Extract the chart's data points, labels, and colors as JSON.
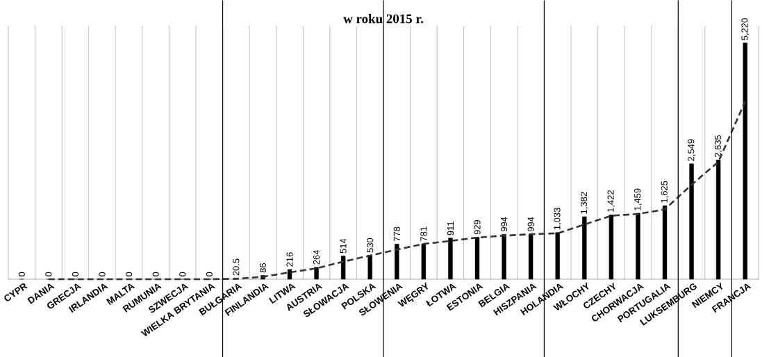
{
  "chart_data": {
    "type": "bar",
    "title": "w roku 2015 r.",
    "categories": [
      "CYPR",
      "DANIA",
      "GRECJA",
      "IRLANDIA",
      "MALTA",
      "RUMUNIA",
      "SZWECJA",
      "WIELKA BRYTANIA",
      "BUŁGARIA",
      "FINLANDIA",
      "LITWA",
      "AUSTRIA",
      "SŁOWACJA",
      "POLSKA",
      "SŁOWENIA",
      "WĘGRY",
      "ŁOTWA",
      "ESTONIA",
      "BELGIA",
      "HISZPANIA",
      "HOLANDIA",
      "WŁOCHY",
      "CZECHY",
      "CHORWACJA",
      "PORTUGALIA",
      "LUKSEMBURG",
      "NIEMCY",
      "FRANCJA"
    ],
    "series": [
      {
        "color": "#000000",
        "values": [
          0,
          0,
          0,
          0,
          0,
          0,
          0,
          0,
          20.5,
          86,
          216,
          264,
          514,
          530,
          778,
          781,
          911,
          929,
          994,
          994,
          1033,
          1382,
          1422,
          1459,
          1625,
          2549,
          2635,
          5220
        ],
        "value_labels": [
          "0",
          "0",
          "0",
          "0",
          "0",
          "0",
          "0",
          "0",
          "20.5",
          "86",
          "216",
          "264",
          "514",
          "530",
          "778",
          "781",
          "911",
          "929",
          "994",
          "994",
          "1,033",
          "1,382",
          "1,422",
          "1,459",
          "1,625",
          "2,549",
          "2,635",
          "5,220"
        ]
      },
      {
        "type": "line",
        "color": "#333333",
        "line_style": "dashed",
        "marker": "none",
        "values": [
          null,
          0,
          0,
          0,
          0,
          0,
          0,
          0,
          10,
          53,
          151,
          240,
          389,
          522,
          654,
          780,
          846,
          920,
          962,
          994,
          1014,
          1208,
          1402,
          1441,
          1542,
          2087,
          2592,
          3928
        ]
      }
    ],
    "ylim": [
      0,
      5600
    ],
    "tick_labels": "x",
    "grid": "x"
  }
}
